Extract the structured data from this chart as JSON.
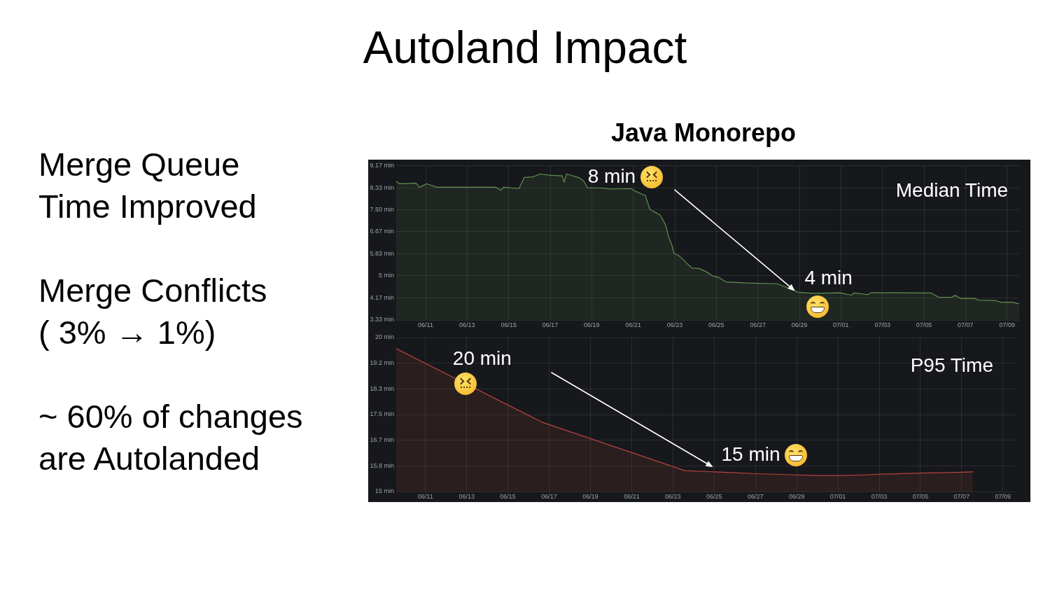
{
  "chart_data": [
    {
      "type": "other",
      "title": "Autoland Impact",
      "annotations": [
        "Merge Queue\nTime Improved",
        "Merge Conflicts\n( 3% → 1%)",
        "~ 60% of changes\nare Autolanded"
      ]
    },
    {
      "type": "area",
      "title": "Java Monorepo",
      "x": [
        "--06-09T14:00",
        "--06-09T18:00",
        "--06-10T13:00",
        "--06-10T17:00",
        "--06-11T01:00",
        "--06-11T13:00",
        "--06-12T19:00",
        "--06-14T09:00",
        "--06-14T15:00",
        "--06-14T18:00",
        "--06-15T12:00",
        "--06-15T18:00",
        "--06-16T04:00",
        "--06-16T12:00",
        "--06-17T01:00",
        "--06-17T14:00",
        "--06-17T16:00",
        "--06-17T19:00",
        "--06-17T23:00",
        "--06-18T10:00",
        "--06-18T15:00",
        "--06-18T19:00",
        "--06-19T13:00",
        "--06-19T21:00",
        "--06-20T21:00",
        "--06-21T03:00",
        "--06-21T10:00",
        "--06-21T14:00",
        "--06-21T19:00",
        "--06-22T02:00",
        "--06-22T07:00",
        "--06-22T13:00",
        "--06-22T17:00",
        "--06-22T21:00",
        "--06-22T23:00",
        "--06-23T06:00",
        "--06-23T14:00",
        "--06-23T20:00",
        "--06-24T04:00",
        "--06-24T12:00",
        "--06-24T20:00",
        "--06-25T02:00",
        "--06-25T11:00",
        "--06-26T11:00",
        "--06-27T22:00",
        "--06-28T17:00",
        "--06-28T22:00",
        "--06-29T15:00",
        "--06-30T23:00",
        "--07-01T12:00",
        "--07-01T15:00",
        "--07-02T07:00",
        "--07-02T11:00",
        "--07-03T18:00",
        "--07-05T08:00",
        "--07-05T17:00",
        "--07-06T08:00",
        "--07-06T12:00",
        "--07-06T18:00",
        "--07-07T10:00",
        "--07-07T15:00",
        "--07-08T10:00",
        "--07-08T17:00",
        "--07-09T06:00",
        "--07-09T14:00"
      ],
      "series": [
        {
          "color": "#5f9150",
          "values": [
            8.57,
            8.48,
            8.5,
            8.35,
            8.48,
            8.35,
            8.35,
            8.35,
            8.24,
            8.35,
            8.3,
            8.72,
            8.74,
            8.85,
            8.8,
            8.78,
            8.54,
            8.85,
            8.81,
            8.7,
            8.57,
            8.33,
            8.32,
            8.28,
            8.3,
            8.19,
            8.09,
            8.04,
            7.52,
            7.39,
            7.3,
            6.95,
            6.47,
            6.12,
            5.86,
            5.73,
            5.47,
            5.29,
            5.28,
            5.16,
            4.99,
            4.95,
            4.77,
            4.73,
            4.7,
            4.47,
            4.38,
            4.34,
            4.36,
            4.27,
            4.35,
            4.29,
            4.36,
            4.36,
            4.35,
            4.19,
            4.19,
            4.26,
            4.15,
            4.15,
            4.08,
            4.07,
            4.0,
            4.0,
            3.94
          ]
        }
      ],
      "xlim": [
        "--06-09T14:00",
        "--07-09T14:00"
      ],
      "ylim": [
        3.33,
        9.17
      ],
      "xticks": [
        {
          "value": "--06-11",
          "label": "06/11"
        },
        {
          "value": "--06-13",
          "label": "06/13"
        },
        {
          "value": "--06-15",
          "label": "06/15"
        },
        {
          "value": "--06-17",
          "label": "06/17"
        },
        {
          "value": "--06-19",
          "label": "06/19"
        },
        {
          "value": "--06-21",
          "label": "06/21"
        },
        {
          "value": "--06-23",
          "label": "06/23"
        },
        {
          "value": "--06-25",
          "label": "06/25"
        },
        {
          "value": "--06-27",
          "label": "06/27"
        },
        {
          "value": "--06-29",
          "label": "06/29"
        },
        {
          "value": "--07-01",
          "label": "07/01"
        },
        {
          "value": "--07-03",
          "label": "07/03"
        },
        {
          "value": "--07-05",
          "label": "07/05"
        },
        {
          "value": "--07-07",
          "label": "07/07"
        },
        {
          "value": "--07-09",
          "label": "07/09"
        }
      ],
      "yticks": [
        {
          "value": 9.17,
          "label": "9.17 min"
        },
        {
          "value": 8.33,
          "label": "8.33 min"
        },
        {
          "value": 7.5,
          "label": "7.50 min"
        },
        {
          "value": 6.67,
          "label": "6.67 min"
        },
        {
          "value": 5.83,
          "label": "5.83 min"
        },
        {
          "value": 5,
          "label": "5 min"
        },
        {
          "value": 4.17,
          "label": "4.17 min"
        },
        {
          "value": 3.33,
          "label": "3.33 min"
        }
      ],
      "grid": true,
      "annotations": [
        "8 min",
        "Median Time",
        "4 min"
      ]
    },
    {
      "type": "area",
      "x": [
        "--06-09T14:00",
        "--06-16T15:00",
        "--06-23T14:00",
        "--06-25T00:00",
        "--06-26T00:00",
        "--06-27T02:00",
        "--06-29T01:00",
        "--06-30T00:00",
        "--07-01T02:00",
        "--07-02T05:00",
        "--07-03T08:00",
        "--07-05T00:00",
        "--07-06T17:00",
        "--07-07T13:00"
      ],
      "series": [
        {
          "color": "#b5443b",
          "values": [
            19.64,
            17.26,
            15.68,
            15.64,
            15.61,
            15.58,
            15.54,
            15.52,
            15.52,
            15.54,
            15.57,
            15.6,
            15.62,
            15.64
          ]
        }
      ],
      "xlim": [
        "--06-09T14:00",
        "--07-09T14:00"
      ],
      "ylim": [
        15,
        20
      ],
      "xticks": [
        {
          "value": "--06-11",
          "label": "06/11"
        },
        {
          "value": "--06-13",
          "label": "06/13"
        },
        {
          "value": "--06-15",
          "label": "06/15"
        },
        {
          "value": "--06-17",
          "label": "06/17"
        },
        {
          "value": "--06-19",
          "label": "06/19"
        },
        {
          "value": "--06-21",
          "label": "06/21"
        },
        {
          "value": "--06-23",
          "label": "06/23"
        },
        {
          "value": "--06-25",
          "label": "06/25"
        },
        {
          "value": "--06-27",
          "label": "06/27"
        },
        {
          "value": "--06-29",
          "label": "06/29"
        },
        {
          "value": "--07-01",
          "label": "07/01"
        },
        {
          "value": "--07-03",
          "label": "07/03"
        },
        {
          "value": "--07-05",
          "label": "07/05"
        },
        {
          "value": "--07-07",
          "label": "07/07"
        },
        {
          "value": "--07-09",
          "label": "07/09"
        }
      ],
      "yticks": [
        {
          "value": 20,
          "label": "20 min"
        },
        {
          "value": 19.17,
          "label": "19.2 min"
        },
        {
          "value": 18.33,
          "label": "18.3 min"
        },
        {
          "value": 17.5,
          "label": "17.5 min"
        },
        {
          "value": 16.67,
          "label": "16.7 min"
        },
        {
          "value": 15.83,
          "label": "15.8 min"
        },
        {
          "value": 15,
          "label": "15 min"
        }
      ],
      "grid": true,
      "annotations": [
        "20 min",
        "P95 Time",
        "15 min"
      ]
    }
  ]
}
